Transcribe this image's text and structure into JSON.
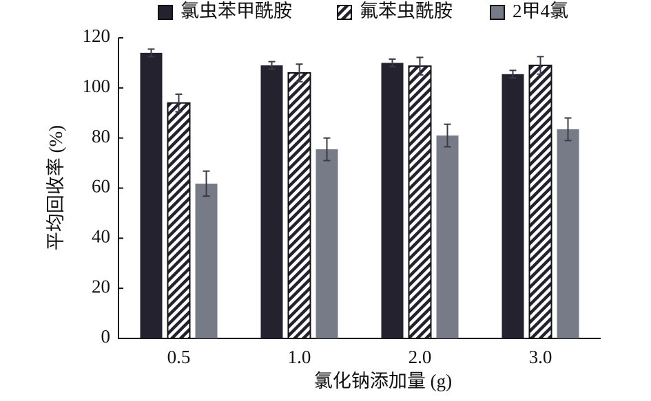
{
  "chart_data": {
    "type": "bar",
    "x_label": "氯化钠添加量 (g)",
    "y_label": "平均回收率 (%)",
    "categories": [
      "0.5",
      "1.0",
      "2.0",
      "3.0"
    ],
    "series": [
      {
        "name": "氯虫苯甲酰胺",
        "color": "#23222e",
        "values": [
          114,
          109,
          110,
          105.5
        ],
        "errors": [
          1.5,
          1.5,
          1.5,
          1.5
        ]
      },
      {
        "name": "氟苯虫酰胺",
        "color": "#23222e",
        "pattern": "hatch",
        "values": [
          94,
          106,
          108.7,
          109
        ],
        "errors": [
          3.5,
          3.5,
          3.5,
          3.5
        ]
      },
      {
        "name": "2甲4氯",
        "color": "#767b87",
        "values": [
          61.8,
          75.5,
          81,
          83.5
        ],
        "errors": [
          5,
          4.5,
          4.5,
          4.5
        ]
      }
    ],
    "ylim": [
      0,
      120
    ],
    "yticks": [
      0,
      20,
      40,
      60,
      80,
      100,
      120
    ],
    "grid": false
  }
}
